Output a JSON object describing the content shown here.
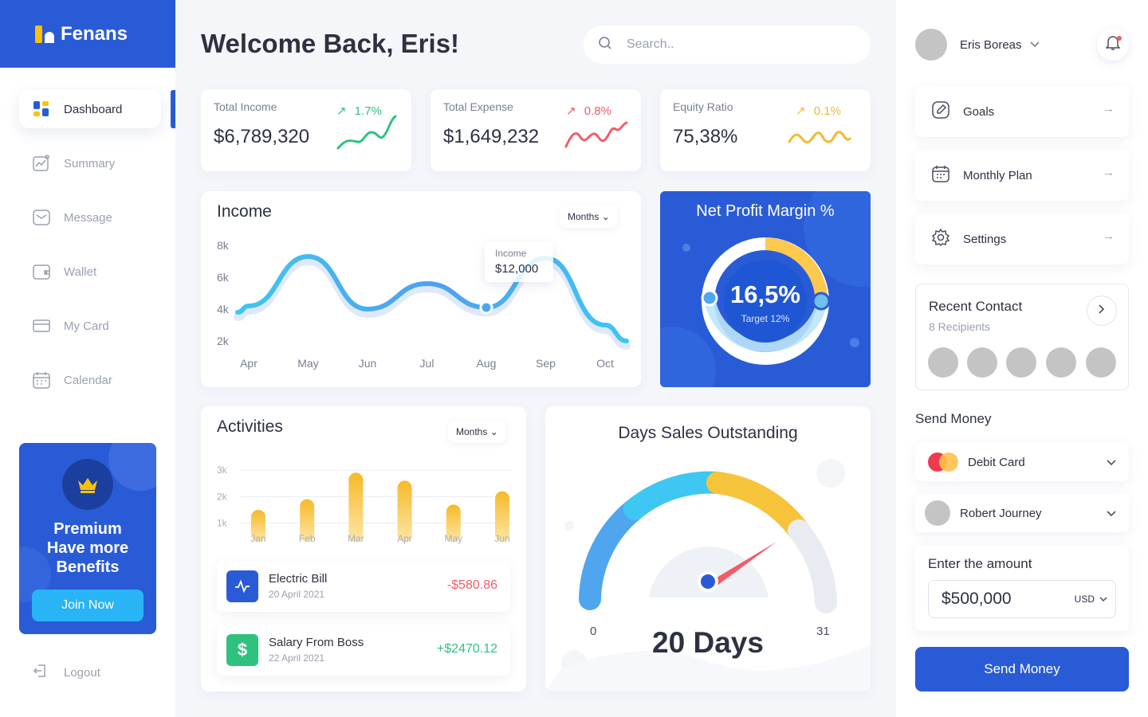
{
  "app": {
    "name": "Fenans"
  },
  "sidebar": {
    "items": [
      {
        "label": "Dashboard",
        "icon": "dashboard-icon",
        "active": true
      },
      {
        "label": "Summary",
        "icon": "summary-icon"
      },
      {
        "label": "Message",
        "icon": "message-icon"
      },
      {
        "label": "Wallet",
        "icon": "wallet-icon"
      },
      {
        "label": "My Card",
        "icon": "card-icon"
      },
      {
        "label": "Calendar",
        "icon": "calendar-icon"
      }
    ],
    "premium": {
      "line1": "Premium",
      "line2": "Have more",
      "line3": "Benefits",
      "button": "Join Now"
    },
    "logout": "Logout"
  },
  "header": {
    "welcome": "Welcome Back, Eris!",
    "search_placeholder": "Search.."
  },
  "stats": [
    {
      "label": "Total Income",
      "value": "$6,789,320",
      "change": "1.7%",
      "color": "#2ec27e"
    },
    {
      "label": "Total Expense",
      "value": "$1,649,232",
      "change": "0.8%",
      "color": "#f25c6a"
    },
    {
      "label": "Equity Ratio",
      "value": "75,38%",
      "change": "0.1%",
      "color": "#f5b82e"
    }
  ],
  "income": {
    "title": "Income",
    "filter": "Months",
    "tooltip_label": "Income",
    "tooltip_value": "$12,000"
  },
  "npm": {
    "title": "Net Profit Margin %",
    "value": "16,5%",
    "target": "Target 12%"
  },
  "activities": {
    "title": "Activities",
    "filter": "Months",
    "items": [
      {
        "name": "Electric Bill",
        "date": "20 April 2021",
        "amount": "-$580.86",
        "icon": "pulse-icon",
        "color": "#f25c6a",
        "icon_bg": "#2a5bd7"
      },
      {
        "name": "Salary From Boss",
        "date": "22 April 2021",
        "amount": "+$2470.12",
        "icon": "dollar-icon",
        "color": "#2ec27e",
        "icon_bg": "#2ec27e"
      }
    ]
  },
  "dso": {
    "title": "Days Sales Outstanding",
    "value": "20 Days",
    "min": "0",
    "max": "31"
  },
  "right": {
    "user": "Eris Boreas",
    "menu": [
      {
        "label": "Goals",
        "icon": "goals-icon"
      },
      {
        "label": "Monthly Plan",
        "icon": "calendar-icon"
      },
      {
        "label": "Settings",
        "icon": "gear-icon"
      }
    ],
    "recent": {
      "title": "Recent Contact",
      "subtitle": "8 Recipients"
    },
    "send_title": "Send Money",
    "card_select": "Debit Card",
    "recipient_select": "Robert Journey",
    "amount_label": "Enter the amount",
    "amount_value": "$500,000",
    "currency": "USD",
    "send_button": "Send Money"
  },
  "chart_data": [
    {
      "type": "line",
      "title": "Income",
      "x": [
        "Apr",
        "May",
        "Jun",
        "Jul",
        "Aug",
        "Sep",
        "Oct"
      ],
      "y_ticks": [
        "8k",
        "6k",
        "4k",
        "2k"
      ],
      "ylim": [
        2,
        8
      ],
      "points_note": "smooth curve",
      "series": [
        {
          "values": [
            4.2,
            7.3,
            4.0,
            5.6,
            4.1,
            7.2,
            3.0
          ]
        }
      ]
    },
    {
      "type": "bar",
      "title": "Activities",
      "categories": [
        "Jan",
        "Feb",
        "Mar",
        "Apr",
        "May",
        "Jun"
      ],
      "y_ticks": [
        "3k",
        "2k",
        "1k"
      ],
      "ylim": [
        0.6,
        3.0
      ],
      "values": [
        1.5,
        1.9,
        2.9,
        2.6,
        1.7,
        2.2
      ]
    }
  ]
}
